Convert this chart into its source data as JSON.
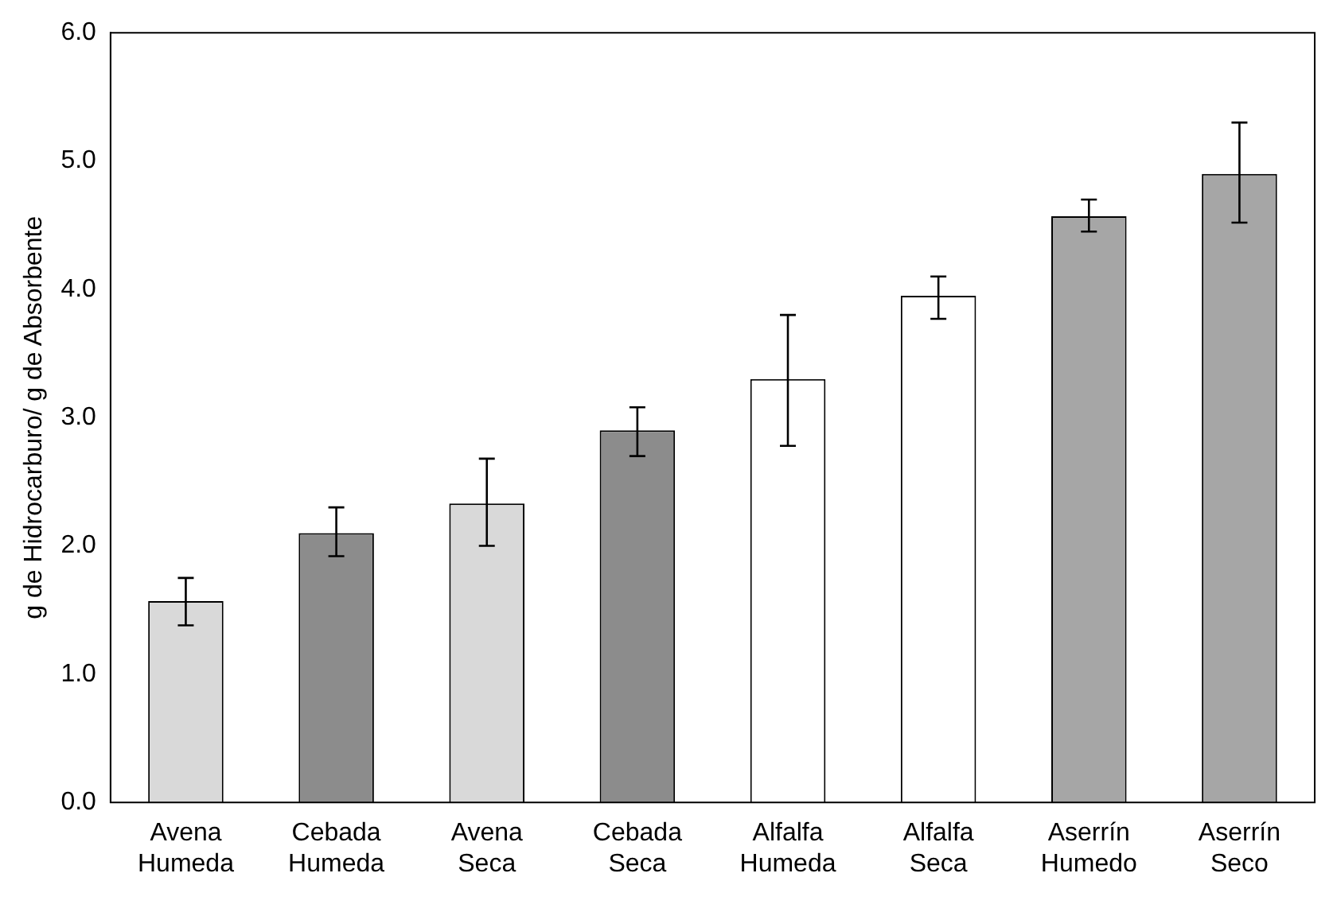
{
  "chart_data": {
    "type": "bar",
    "ylabel": "g de Hidrocarburo/ g de Absorbente",
    "categories": [
      "Avena Humeda",
      "Cebada Humeda",
      "Avena Seca",
      "Cebada Seca",
      "Alfalfa Humeda",
      "Alfalfa Seca",
      "Aserrín Humedo",
      "Aserrín Seco"
    ],
    "values": [
      1.57,
      2.1,
      2.33,
      2.9,
      3.3,
      3.95,
      4.57,
      4.9
    ],
    "colors": [
      "#d9d9d9",
      "#8c8c8c",
      "#d9d9d9",
      "#8c8c8c",
      "#ffffff",
      "#ffffff",
      "#a6a6a6",
      "#a6a6a6"
    ],
    "errors": [
      [
        1.38,
        1.75
      ],
      [
        1.92,
        2.3
      ],
      [
        2.0,
        2.68
      ],
      [
        2.7,
        3.08
      ],
      [
        2.78,
        3.8
      ],
      [
        3.77,
        4.1
      ],
      [
        4.45,
        4.7
      ],
      [
        4.52,
        5.3
      ]
    ],
    "ylim": [
      0,
      6
    ],
    "yticks": [
      {
        "value": 0,
        "label": "0.0"
      },
      {
        "value": 1,
        "label": "1.0"
      },
      {
        "value": 2,
        "label": "2.0"
      },
      {
        "value": 3,
        "label": "3.0"
      },
      {
        "value": 4,
        "label": "4.0"
      },
      {
        "value": 5,
        "label": "5.0"
      },
      {
        "value": 6,
        "label": "6.0"
      }
    ],
    "grid": false,
    "legend": false
  }
}
